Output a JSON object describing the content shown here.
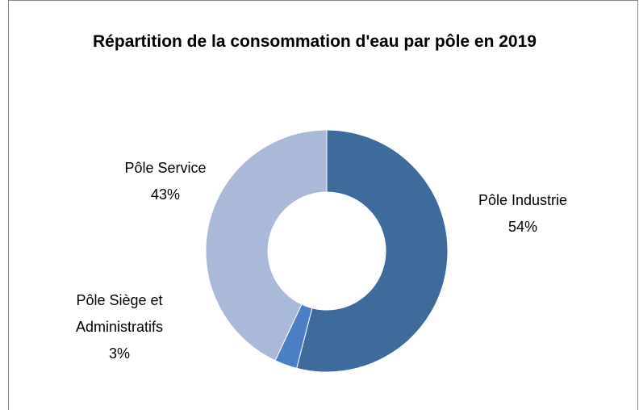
{
  "chart_data": {
    "type": "donut",
    "title": "Répartition de la consommation d'eau par pôle en 2019",
    "categories": [
      "Pôle Industrie",
      "Pôle Siège et Administratifs",
      "Pôle Service"
    ],
    "values": [
      54,
      3,
      43
    ],
    "value_labels": [
      "54%",
      "3%",
      "43%"
    ],
    "colors": [
      "#3e6a9c",
      "#4a7fc4",
      "#aab9d8"
    ]
  }
}
